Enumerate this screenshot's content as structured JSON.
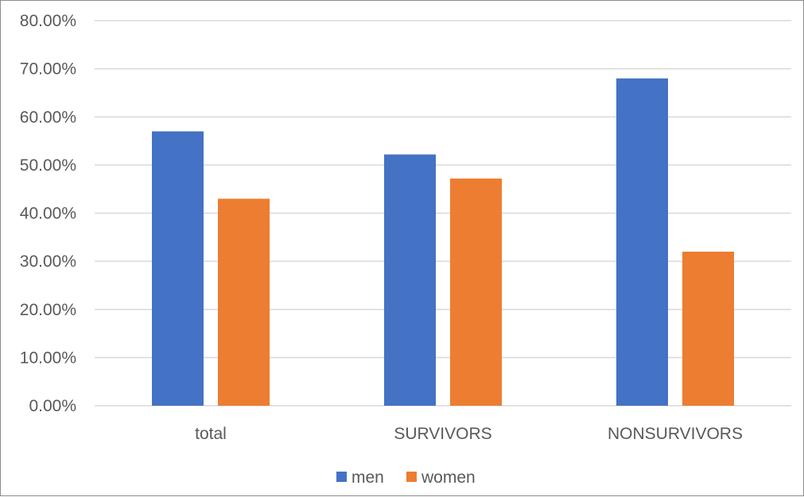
{
  "chart_data": {
    "type": "bar",
    "categories": [
      "total",
      "SURVIVORS",
      "NONSURVIVORS"
    ],
    "series": [
      {
        "name": "men",
        "values": [
          57.0,
          52.2,
          68.0
        ],
        "color": "#4472c4"
      },
      {
        "name": "women",
        "values": [
          43.0,
          47.2,
          32.0
        ],
        "color": "#ed7d31"
      }
    ],
    "yticks": [
      "0.00%",
      "10.00%",
      "20.00%",
      "30.00%",
      "40.00%",
      "50.00%",
      "60.00%",
      "70.00%",
      "80.00%"
    ],
    "ylim": [
      0,
      80
    ],
    "ytick_step": 10,
    "grid": true,
    "legend_position": "bottom",
    "title": "",
    "xlabel": "",
    "ylabel": ""
  }
}
